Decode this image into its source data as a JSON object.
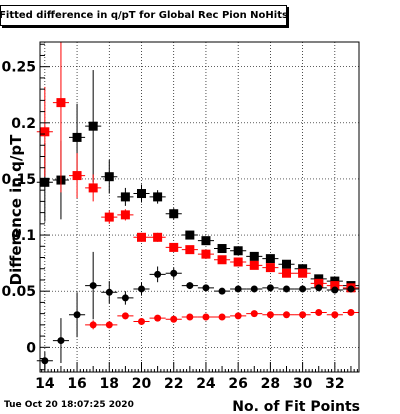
{
  "header": {
    "title": "Fitted difference in q/pT for Global Rec Pion NoHits"
  },
  "footer": {
    "timestamp": "Tue Oct 20 18:07:25 2020"
  },
  "chart_data": {
    "type": "scatter",
    "title": "Fitted difference in q/pT for Global Rec Pion NoHits",
    "xlabel": "No. of Fit Points",
    "ylabel": "Difference in q/pT",
    "xlim": [
      13.7,
      33.5
    ],
    "ylim": [
      -0.022,
      0.272
    ],
    "grid": true,
    "x_ticks": [
      14,
      16,
      18,
      20,
      22,
      24,
      26,
      28,
      30,
      32
    ],
    "x_tick_labels": [
      "14",
      "16",
      "18",
      "20",
      "22",
      "24",
      "26",
      "28",
      "30",
      "32"
    ],
    "y_ticks": [
      0,
      0.05,
      0.1,
      0.15,
      0.2,
      0.25
    ],
    "y_tick_labels": [
      "0",
      "0.05",
      "0.1",
      "0.15",
      "0.2",
      "0.25"
    ],
    "x": [
      14,
      15,
      16,
      17,
      18,
      19,
      20,
      21,
      22,
      23,
      24,
      25,
      26,
      27,
      28,
      29,
      30,
      31,
      32,
      33
    ],
    "series": [
      {
        "color": "#000000",
        "marker": "square",
        "values": [
          0.147,
          0.149,
          0.187,
          0.197,
          0.152,
          0.134,
          0.137,
          0.134,
          0.119,
          0.1,
          0.095,
          0.088,
          0.086,
          0.081,
          0.079,
          0.074,
          0.07,
          0.061,
          0.059,
          0.055
        ],
        "errors": [
          0.035,
          0.035,
          0.03,
          0.05,
          0.015,
          0.008,
          0.008,
          0.006,
          0.005,
          0.003,
          0.003,
          0.003,
          0.003,
          0.003,
          0.003,
          0.003,
          0.003,
          0.003,
          0.003,
          0.002
        ]
      },
      {
        "color": "#ff0000",
        "marker": "square",
        "values": [
          0.192,
          0.218,
          0.153,
          0.142,
          0.116,
          0.118,
          0.098,
          0.098,
          0.089,
          0.087,
          0.083,
          0.078,
          0.076,
          0.073,
          0.071,
          0.066,
          0.066,
          0.057,
          0.055,
          0.053
        ],
        "errors": [
          0.04,
          0.08,
          0.02,
          0.012,
          0.006,
          0.005,
          0.004,
          0.004,
          0.003,
          0.003,
          0.003,
          0.003,
          0.002,
          0.002,
          0.002,
          0.002,
          0.002,
          0.002,
          0.002,
          0.002
        ]
      },
      {
        "color": "#000000",
        "marker": "circle",
        "values": [
          -0.012,
          0.006,
          0.029,
          0.055,
          0.049,
          0.044,
          0.052,
          0.065,
          0.066,
          0.055,
          0.053,
          0.05,
          0.052,
          0.052,
          0.053,
          0.052,
          0.052,
          0.053,
          0.051,
          0.052
        ],
        "errors": [
          0.008,
          0.02,
          0.02,
          0.03,
          0.01,
          0.006,
          0.006,
          0.007,
          0.005,
          0.003,
          0.003,
          0.002,
          0.002,
          0.002,
          0.002,
          0.002,
          0.002,
          0.002,
          0.002,
          0.002
        ]
      },
      {
        "color": "#ff0000",
        "marker": "circle",
        "values": [
          null,
          null,
          null,
          0.02,
          0.02,
          0.028,
          0.023,
          0.026,
          0.025,
          0.027,
          0.027,
          0.027,
          0.028,
          0.03,
          0.029,
          0.029,
          0.029,
          0.031,
          0.029,
          0.031
        ],
        "errors": [
          0,
          0,
          0,
          0.004,
          0.003,
          0.003,
          0.002,
          0.002,
          0.002,
          0.002,
          0.002,
          0.002,
          0.002,
          0.002,
          0.002,
          0.002,
          0.002,
          0.002,
          0.002,
          0.002
        ]
      }
    ]
  }
}
